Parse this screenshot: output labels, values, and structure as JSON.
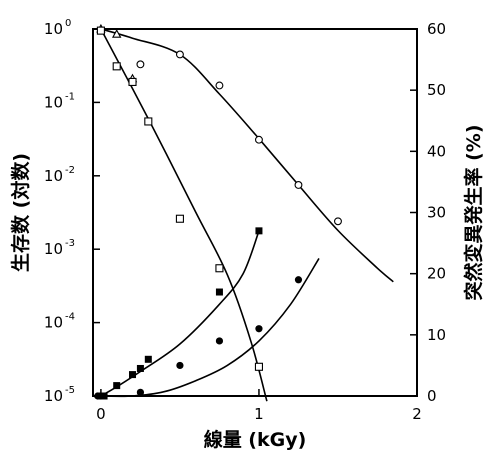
{
  "chart_data": {
    "type": "scatter",
    "xlabel": "線量 (kGy)",
    "ylabel_left": "生存数 (対数)",
    "ylabel_right": "突然変異発生率 (%)",
    "xlim": [
      -0.05,
      2
    ],
    "x_ticks": [
      {
        "value": 0,
        "label": "0"
      },
      {
        "value": 1,
        "label": "1"
      },
      {
        "value": 2,
        "label": "2"
      }
    ],
    "y_left": {
      "scale": "log",
      "range": [
        1e-05,
        1
      ],
      "ticks": [
        {
          "value": 1,
          "base": "10",
          "exp": "0"
        },
        {
          "value": 0.1,
          "base": "10",
          "exp": "-1"
        },
        {
          "value": 0.01,
          "base": "10",
          "exp": "-2"
        },
        {
          "value": 0.001,
          "base": "10",
          "exp": "-3"
        },
        {
          "value": 0.0001,
          "base": "10",
          "exp": "-4"
        },
        {
          "value": 1e-05,
          "base": "10",
          "exp": "-5"
        }
      ]
    },
    "y_right": {
      "scale": "linear",
      "range": [
        0,
        60
      ],
      "ticks": [
        {
          "value": 0,
          "label": "0"
        },
        {
          "value": 10,
          "label": "10"
        },
        {
          "value": 20,
          "label": "20"
        },
        {
          "value": 30,
          "label": "30"
        },
        {
          "value": 40,
          "label": "40"
        },
        {
          "value": 50,
          "label": "50"
        },
        {
          "value": 60,
          "label": "60"
        }
      ]
    },
    "series": [
      {
        "marker": "open-triangle",
        "axis": "left",
        "points": [
          [
            0,
            1
          ],
          [
            0.1,
            0.85
          ],
          [
            0.2,
            0.21
          ]
        ]
      },
      {
        "marker": "open-circle",
        "axis": "left",
        "points": [
          [
            0.25,
            0.33
          ],
          [
            0.5,
            0.45
          ],
          [
            0.75,
            0.17
          ],
          [
            1.0,
            0.031
          ],
          [
            1.25,
            0.0075
          ],
          [
            1.5,
            0.0024
          ]
        ]
      },
      {
        "marker": "open-square",
        "axis": "left",
        "points": [
          [
            0,
            0.95
          ],
          [
            0.1,
            0.31
          ],
          [
            0.2,
            0.19
          ],
          [
            0.3,
            0.055
          ],
          [
            0.5,
            0.0026
          ],
          [
            0.75,
            0.00055
          ],
          [
            1.0,
            2.5e-05
          ]
        ]
      },
      {
        "marker": "filled-square",
        "axis": "right",
        "points": [
          [
            0,
            0
          ],
          [
            0.02,
            0
          ],
          [
            0.1,
            1.7
          ],
          [
            0.2,
            3.5
          ],
          [
            0.25,
            4.5
          ],
          [
            0.3,
            6
          ],
          [
            0.75,
            17
          ],
          [
            1.0,
            27
          ]
        ]
      },
      {
        "marker": "filled-circle",
        "axis": "right",
        "points": [
          [
            -0.02,
            0
          ],
          [
            0,
            0
          ],
          [
            0.25,
            0.6
          ],
          [
            0.5,
            5
          ],
          [
            0.75,
            9
          ],
          [
            1.0,
            11
          ],
          [
            1.25,
            19
          ]
        ]
      }
    ],
    "fitted_lines": [
      {
        "axis": "left",
        "points": [
          [
            0,
            1
          ],
          [
            0.2,
            0.75
          ],
          [
            0.5,
            0.45
          ],
          [
            0.75,
            0.13
          ],
          [
            1.0,
            0.032
          ],
          [
            1.25,
            0.0075
          ],
          [
            1.5,
            0.0018
          ],
          [
            1.75,
            0.00055
          ],
          [
            1.85,
            0.00036
          ]
        ]
      },
      {
        "axis": "left",
        "points": [
          [
            0,
            1
          ],
          [
            0.3,
            0.06
          ],
          [
            0.6,
            0.0032
          ],
          [
            0.8,
            0.00045
          ],
          [
            0.95,
            5.5e-05
          ],
          [
            1.05,
            8.5e-06
          ]
        ]
      },
      {
        "axis": "right",
        "points": [
          [
            0,
            0
          ],
          [
            0.1,
            1.5
          ],
          [
            0.25,
            4
          ],
          [
            0.5,
            8.5
          ],
          [
            0.75,
            15
          ],
          [
            0.9,
            20
          ],
          [
            1.0,
            27
          ]
        ]
      },
      {
        "axis": "right",
        "points": [
          [
            0,
            0
          ],
          [
            0.2,
            0
          ],
          [
            0.4,
            0.7
          ],
          [
            0.6,
            2.5
          ],
          [
            0.8,
            5
          ],
          [
            1.0,
            9
          ],
          [
            1.2,
            15
          ],
          [
            1.38,
            22.5
          ]
        ]
      }
    ]
  }
}
